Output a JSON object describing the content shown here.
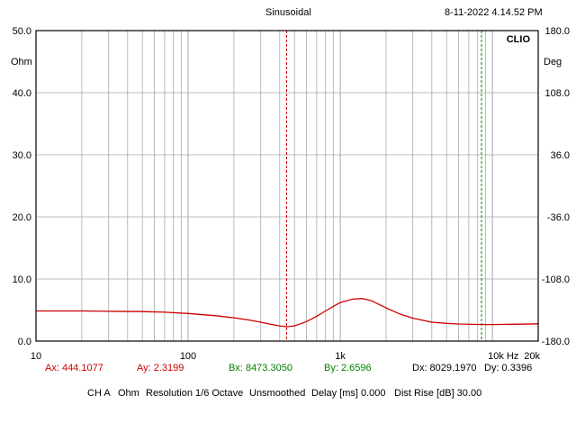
{
  "header": {
    "title": "Sinusoidal",
    "datetime": "8-11-2022 4.14.52 PM"
  },
  "chart_data": {
    "type": "line",
    "brand": "CLIO",
    "xscale": "log",
    "xlim": [
      10,
      20000
    ],
    "ylim_left": [
      0,
      50
    ],
    "ylim_right": [
      -180,
      180
    ],
    "left_unit": "Ohm",
    "right_unit": "Deg",
    "x_ticks": [
      {
        "value": 10,
        "label": "10"
      },
      {
        "value": 100,
        "label": "100"
      },
      {
        "value": 1000,
        "label": "1k"
      },
      {
        "value": 10000,
        "label": "10k Hz"
      },
      {
        "value": 20000,
        "label": "20k"
      }
    ],
    "y_ticks_left": [
      "50.0",
      "40.0",
      "30.0",
      "20.0",
      "10.0",
      "0.0"
    ],
    "y_ticks_right": [
      "180.0",
      "108.0",
      "36.0",
      "-36.0",
      "-108.0",
      "-180.0"
    ],
    "grid": true,
    "series": [
      {
        "color": "#cc0000",
        "x": [
          10,
          20,
          30,
          50,
          70,
          100,
          150,
          200,
          250,
          300,
          350,
          400,
          444,
          500,
          600,
          700,
          800,
          900,
          1000,
          1200,
          1400,
          1600,
          1800,
          2000,
          2500,
          3000,
          4000,
          5000,
          6000,
          8000,
          10000,
          15000,
          20000
        ],
        "y": [
          4.85,
          4.85,
          4.8,
          4.75,
          4.65,
          4.45,
          4.1,
          3.75,
          3.4,
          3.05,
          2.7,
          2.45,
          2.32,
          2.45,
          3.15,
          4.0,
          4.85,
          5.6,
          6.2,
          6.75,
          6.85,
          6.5,
          5.9,
          5.35,
          4.3,
          3.7,
          3.05,
          2.85,
          2.75,
          2.68,
          2.66,
          2.72,
          2.78
        ]
      }
    ],
    "cursor_a": {
      "x": 444.1077,
      "color": "#cc0000"
    },
    "cursor_b": {
      "x": 8473.305,
      "color": "#008000"
    },
    "readouts": {
      "ax": "Ax: 444.1077",
      "ay": "Ay: 2.3199",
      "bx": "Bx: 8473.3050",
      "by": "By: 2.6596",
      "dx": "Dx: 8029.1970",
      "dy": "Dy: 0.3396"
    }
  },
  "footer": {
    "channel": "CH A",
    "unit": "Ohm",
    "resolution": "Resolution 1/6 Octave",
    "smoothing": "Unsmoothed",
    "delay": "Delay [ms] 0.000",
    "dist_rise": "Dist Rise [dB] 30.00"
  },
  "colors": {
    "grid": "#a8a8a8",
    "curve": "#cc0000",
    "cursor_a": "#cc0000",
    "cursor_b": "#008000"
  }
}
